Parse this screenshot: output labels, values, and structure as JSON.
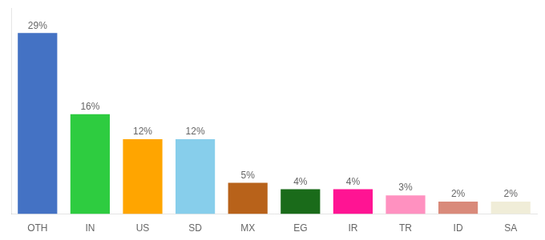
{
  "chart_data": {
    "type": "bar",
    "categories": [
      "OTH",
      "IN",
      "US",
      "SD",
      "MX",
      "EG",
      "IR",
      "TR",
      "ID",
      "SA"
    ],
    "values": [
      29,
      16,
      12,
      12,
      5,
      4,
      4,
      3,
      2,
      2
    ],
    "value_labels": [
      "29%",
      "16%",
      "12%",
      "12%",
      "5%",
      "4%",
      "4%",
      "3%",
      "2%",
      "2%"
    ],
    "colors": [
      "#4472C4",
      "#2ECC40",
      "#FFA500",
      "#87CEEB",
      "#B8621A",
      "#1A6B1A",
      "#FF1493",
      "#FF91C0",
      "#D98A7A",
      "#F0EDD8"
    ],
    "data_labels": true,
    "ylim": [
      0,
      33
    ],
    "tick_labels": "x",
    "grid": false
  }
}
